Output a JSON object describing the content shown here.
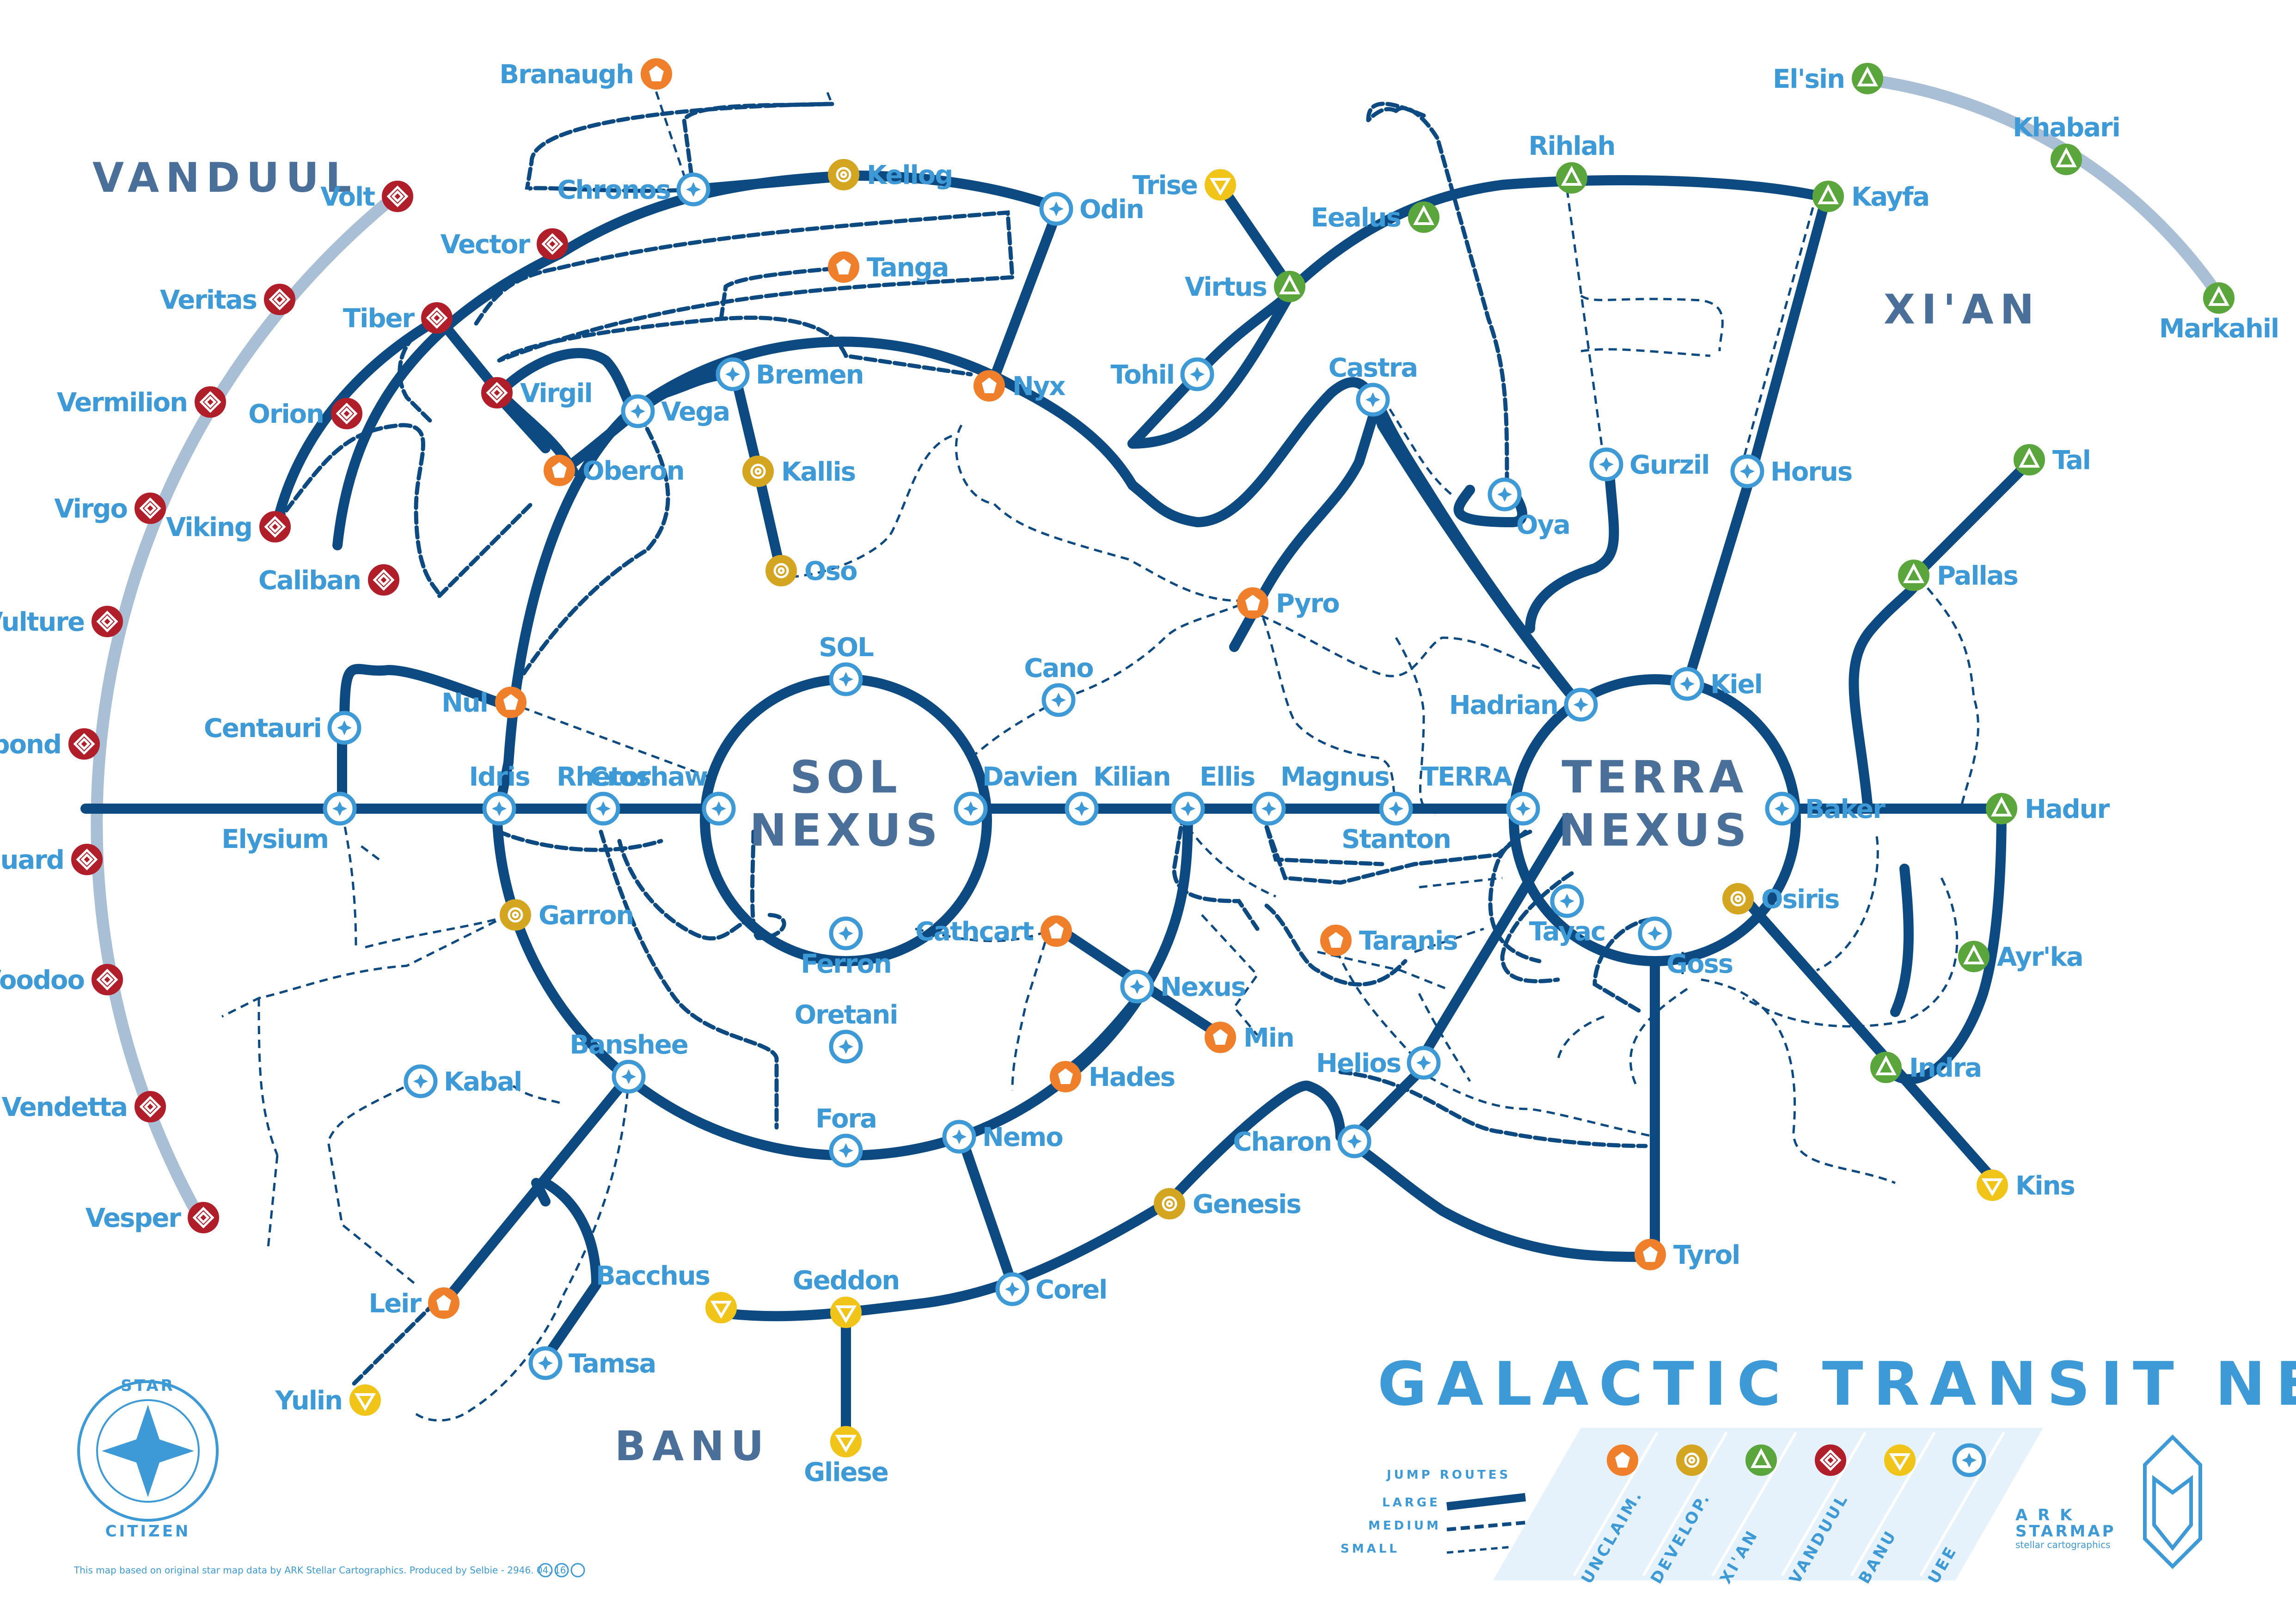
{
  "regions": {
    "vanduul": "VANDUUL",
    "xian": "XI'AN",
    "banu": "BANU"
  },
  "nexus": {
    "sol_1": "SOL",
    "sol_2": "NEXUS",
    "terra_1": "TERRA",
    "terra_2": "NEXUS"
  },
  "title": "GALACTIC TRANSIT NETWORK",
  "colors": {
    "uee": "#3d9ad6",
    "unclaimed": "#f07f2b",
    "developing": "#d4a520",
    "xian": "#5aa63c",
    "vanduul": "#b01e2a",
    "banu": "#f0c419",
    "route": "#0e4a82",
    "vanduul_track": "#a9bfd6"
  },
  "systems": [
    {
      "id": "branaugh",
      "name": "Branaugh",
      "type": "unclaimed"
    },
    {
      "id": "chronos",
      "name": "Chronos",
      "type": "uee"
    },
    {
      "id": "kellog",
      "name": "Kellog",
      "type": "developing"
    },
    {
      "id": "odin",
      "name": "Odin",
      "type": "uee"
    },
    {
      "id": "tanga",
      "name": "Tanga",
      "type": "unclaimed"
    },
    {
      "id": "nyx",
      "name": "Nyx",
      "type": "unclaimed"
    },
    {
      "id": "bremen",
      "name": "Bremen",
      "type": "uee"
    },
    {
      "id": "kallis",
      "name": "Kallis",
      "type": "developing"
    },
    {
      "id": "oso",
      "name": "Oso",
      "type": "developing"
    },
    {
      "id": "vector",
      "name": "Vector",
      "type": "vanduul"
    },
    {
      "id": "tiber",
      "name": "Tiber",
      "type": "vanduul"
    },
    {
      "id": "virgil",
      "name": "Virgil",
      "type": "vanduul"
    },
    {
      "id": "vega",
      "name": "Vega",
      "type": "uee"
    },
    {
      "id": "oberon",
      "name": "Oberon",
      "type": "unclaimed"
    },
    {
      "id": "orion",
      "name": "Orion",
      "type": "vanduul"
    },
    {
      "id": "viking",
      "name": "Viking",
      "type": "vanduul"
    },
    {
      "id": "caliban",
      "name": "Caliban",
      "type": "vanduul"
    },
    {
      "id": "nul",
      "name": "Nul",
      "type": "unclaimed"
    },
    {
      "id": "centauri",
      "name": "Centauri",
      "type": "uee"
    },
    {
      "id": "volt",
      "name": "Volt",
      "type": "vanduul"
    },
    {
      "id": "veritas",
      "name": "Veritas",
      "type": "vanduul"
    },
    {
      "id": "vermilion",
      "name": "Vermilion",
      "type": "vanduul"
    },
    {
      "id": "virgo",
      "name": "Virgo",
      "type": "vanduul"
    },
    {
      "id": "vulture",
      "name": "Vulture",
      "type": "vanduul"
    },
    {
      "id": "vagabond",
      "name": "Vagabond",
      "type": "vanduul"
    },
    {
      "id": "vanguard",
      "name": "Vanguard",
      "type": "vanduul"
    },
    {
      "id": "voodoo",
      "name": "Voodoo",
      "type": "vanduul"
    },
    {
      "id": "vendetta",
      "name": "Vendetta",
      "type": "vanduul"
    },
    {
      "id": "vesper",
      "name": "Vesper",
      "type": "vanduul"
    },
    {
      "id": "elysium",
      "name": "Elysium",
      "type": "uee"
    },
    {
      "id": "idris",
      "name": "Idris",
      "type": "uee"
    },
    {
      "id": "rhetor",
      "name": "Rhetor",
      "type": "uee"
    },
    {
      "id": "croshaw",
      "name": "Croshaw",
      "type": "uee"
    },
    {
      "id": "sol",
      "name": "SOL",
      "type": "uee"
    },
    {
      "id": "cano",
      "name": "Cano",
      "type": "uee"
    },
    {
      "id": "davien",
      "name": "Davien",
      "type": "uee"
    },
    {
      "id": "kilian",
      "name": "Kilian",
      "type": "uee"
    },
    {
      "id": "ellis",
      "name": "Ellis",
      "type": "uee"
    },
    {
      "id": "magnus",
      "name": "Magnus",
      "type": "uee"
    },
    {
      "id": "stanton",
      "name": "Stanton",
      "type": "uee"
    },
    {
      "id": "terra",
      "name": "TERRA",
      "type": "uee"
    },
    {
      "id": "ferron",
      "name": "Ferron",
      "type": "uee"
    },
    {
      "id": "oretani",
      "name": "Oretani",
      "type": "uee"
    },
    {
      "id": "garron",
      "name": "Garron",
      "type": "developing"
    },
    {
      "id": "cathcart",
      "name": "Cathcart",
      "type": "unclaimed"
    },
    {
      "id": "nexus",
      "name": "Nexus",
      "type": "uee"
    },
    {
      "id": "min",
      "name": "Min",
      "type": "unclaimed"
    },
    {
      "id": "hades",
      "name": "Hades",
      "type": "unclaimed"
    },
    {
      "id": "fora",
      "name": "Fora",
      "type": "uee"
    },
    {
      "id": "nemo",
      "name": "Nemo",
      "type": "uee"
    },
    {
      "id": "banshee",
      "name": "Banshee",
      "type": "uee"
    },
    {
      "id": "kabal",
      "name": "Kabal",
      "type": "uee"
    },
    {
      "id": "leir",
      "name": "Leir",
      "type": "unclaimed"
    },
    {
      "id": "yulin",
      "name": "Yulin",
      "type": "banu"
    },
    {
      "id": "tamsa",
      "name": "Tamsa",
      "type": "uee"
    },
    {
      "id": "bacchus",
      "name": "Bacchus",
      "type": "banu"
    },
    {
      "id": "geddon",
      "name": "Geddon",
      "type": "banu"
    },
    {
      "id": "gliese",
      "name": "Gliese",
      "type": "banu"
    },
    {
      "id": "corel",
      "name": "Corel",
      "type": "uee"
    },
    {
      "id": "genesis",
      "name": "Genesis",
      "type": "developing"
    },
    {
      "id": "charon",
      "name": "Charon",
      "type": "uee"
    },
    {
      "id": "helios",
      "name": "Helios",
      "type": "uee"
    },
    {
      "id": "taranis",
      "name": "Taranis",
      "type": "unclaimed"
    },
    {
      "id": "tyrol",
      "name": "Tyrol",
      "type": "unclaimed"
    },
    {
      "id": "tayac",
      "name": "Tayac",
      "type": "uee"
    },
    {
      "id": "goss",
      "name": "Goss",
      "type": "uee"
    },
    {
      "id": "osiris",
      "name": "Osiris",
      "type": "developing"
    },
    {
      "id": "baker",
      "name": "Baker",
      "type": "uee"
    },
    {
      "id": "hadrian",
      "name": "Hadrian",
      "type": "uee"
    },
    {
      "id": "kiel",
      "name": "Kiel",
      "type": "uee"
    },
    {
      "id": "pyro",
      "name": "Pyro",
      "type": "unclaimed"
    },
    {
      "id": "castra",
      "name": "Castra",
      "type": "uee"
    },
    {
      "id": "oya",
      "name": "Oya",
      "type": "uee"
    },
    {
      "id": "gurzil",
      "name": "Gurzil",
      "type": "uee"
    },
    {
      "id": "horus",
      "name": "Horus",
      "type": "uee"
    },
    {
      "id": "tohil",
      "name": "Tohil",
      "type": "uee"
    },
    {
      "id": "virtus",
      "name": "Virtus",
      "type": "xian"
    },
    {
      "id": "trise",
      "name": "Trise",
      "type": "banu"
    },
    {
      "id": "eealus",
      "name": "Eealus",
      "type": "xian"
    },
    {
      "id": "rihlah",
      "name": "Rihlah",
      "type": "xian"
    },
    {
      "id": "kayfa",
      "name": "Kayfa",
      "type": "xian"
    },
    {
      "id": "elsin",
      "name": "El'sin",
      "type": "xian"
    },
    {
      "id": "khabari",
      "name": "Khabari",
      "type": "xian"
    },
    {
      "id": "markahil",
      "name": "Markahil",
      "type": "xian"
    },
    {
      "id": "tal",
      "name": "Tal",
      "type": "xian"
    },
    {
      "id": "pallas",
      "name": "Pallas",
      "type": "xian"
    },
    {
      "id": "hadur",
      "name": "Hadur",
      "type": "xian"
    },
    {
      "id": "ayrka",
      "name": "Ayr'ka",
      "type": "xian"
    },
    {
      "id": "indra",
      "name": "Indra",
      "type": "xian"
    },
    {
      "id": "kins",
      "name": "Kins",
      "type": "banu"
    }
  ],
  "legend": {
    "jump_routes": "JUMP ROUTES",
    "large": "LARGE",
    "medium": "MEDIUM",
    "small": "SMALL",
    "categories": [
      "UNCLAIM.",
      "DEVELOP.",
      "XI'AN",
      "VANDUUL",
      "BANU",
      "UEE"
    ]
  },
  "logo": {
    "star": "STAR",
    "citizen": "CITIZEN"
  },
  "ark": {
    "name": "A R K",
    "starmap": "STARMAP",
    "tagline": "stellar cartographics"
  },
  "credit": "This map based on original star map data by ARK Stellar Cartographics.  Produced by Selbie - 2946. 04. 16"
}
